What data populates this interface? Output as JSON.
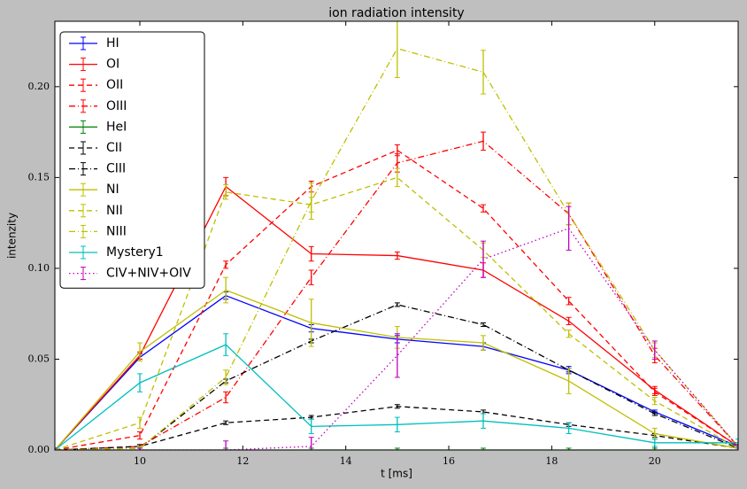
{
  "chart_data": {
    "type": "line",
    "title": "ion radiation intensity",
    "x_label": "t [ms]",
    "y_label": "intenzity",
    "x": [
      8.35,
      10,
      11.67,
      13.33,
      15,
      16.67,
      18.33,
      20,
      21.62
    ],
    "xlim": [
      8.35,
      21.62
    ],
    "xticks": [
      10,
      12,
      14,
      16,
      18,
      20
    ],
    "ylim": [
      0,
      0.236
    ],
    "yticks": [
      {
        "value": 0,
        "label": "0.00"
      },
      {
        "value": 0.05,
        "label": "0.05"
      },
      {
        "value": 0.1,
        "label": "0.10"
      },
      {
        "value": 0.15,
        "label": "0.15"
      },
      {
        "value": 0.2,
        "label": "0.20"
      }
    ],
    "legend": "upper left",
    "grid": false,
    "series": [
      {
        "name": "HI",
        "color": "#0000ff",
        "linestyle": "solid",
        "values": [
          0,
          0.051,
          0.085,
          0.067,
          0.061,
          0.057,
          0.044,
          0.021,
          0.002
        ],
        "errors": [
          0.001,
          0.002,
          0.002,
          0.002,
          0.002,
          0.002,
          0.002,
          0.001,
          0.001
        ]
      },
      {
        "name": "OI",
        "color": "#ff0000",
        "linestyle": "solid",
        "values": [
          0,
          0.052,
          0.145,
          0.108,
          0.107,
          0.099,
          0.071,
          0.033,
          0.002
        ],
        "errors": [
          0.001,
          0.002,
          0.005,
          0.004,
          0.002,
          0.004,
          0.002,
          0.002,
          0.001
        ]
      },
      {
        "name": "OII",
        "color": "#ff0000",
        "linestyle": "dashed",
        "values": [
          0,
          0.008,
          0.102,
          0.145,
          0.165,
          0.133,
          0.082,
          0.032,
          0.002
        ],
        "errors": [
          0.001,
          0.002,
          0.002,
          0.003,
          0.003,
          0.002,
          0.002,
          0.002,
          0.001
        ]
      },
      {
        "name": "OIII",
        "color": "#ff0000",
        "linestyle": "dashdot",
        "values": [
          0,
          0.002,
          0.029,
          0.095,
          0.158,
          0.17,
          0.13,
          0.052,
          0.002
        ],
        "errors": [
          0.001,
          0.001,
          0.003,
          0.004,
          0.005,
          0.005,
          0.006,
          0.004,
          0.001
        ]
      },
      {
        "name": "HeI",
        "color": "#008000",
        "linestyle": "solid",
        "values": [
          0,
          0,
          0,
          0,
          0,
          0,
          0,
          0,
          0
        ],
        "errors": [
          0.001,
          0.001,
          0.001,
          0.001,
          0.001,
          0.001,
          0.001,
          0.001,
          0.001
        ]
      },
      {
        "name": "CII",
        "color": "#000000",
        "linestyle": "dashed",
        "values": [
          0,
          0.002,
          0.015,
          0.018,
          0.024,
          0.021,
          0.014,
          0.008,
          0.001
        ],
        "errors": [
          0.001,
          0.001,
          0.001,
          0.001,
          0.001,
          0.001,
          0.001,
          0.001,
          0.001
        ]
      },
      {
        "name": "CIII",
        "color": "#000000",
        "linestyle": "dashdot",
        "values": [
          0,
          0.001,
          0.038,
          0.06,
          0.08,
          0.069,
          0.044,
          0.02,
          0.001
        ],
        "errors": [
          0.001,
          0.001,
          0.001,
          0.001,
          0.001,
          0.001,
          0.001,
          0.001,
          0.001
        ]
      },
      {
        "name": "NI",
        "color": "#bfbf00",
        "linestyle": "solid",
        "values": [
          0,
          0.054,
          0.088,
          0.07,
          0.062,
          0.059,
          0.038,
          0.009,
          0.001
        ],
        "errors": [
          0.001,
          0.005,
          0.007,
          0.013,
          0.006,
          0.004,
          0.007,
          0.003,
          0.001
        ]
      },
      {
        "name": "NII",
        "color": "#bfbf00",
        "linestyle": "dashed",
        "values": [
          0,
          0.015,
          0.142,
          0.135,
          0.15,
          0.11,
          0.064,
          0.027,
          0.001
        ],
        "errors": [
          0.001,
          0.003,
          0.004,
          0.004,
          0.005,
          0.004,
          0.002,
          0.002,
          0.001
        ]
      },
      {
        "name": "NIII",
        "color": "#bfbf00",
        "linestyle": "dashdot",
        "values": [
          0,
          0.001,
          0.04,
          0.137,
          0.221,
          0.208,
          0.13,
          0.055,
          0.002
        ],
        "errors": [
          0.001,
          0.001,
          0.004,
          0.01,
          0.016,
          0.012,
          0.006,
          0.004,
          0.001
        ]
      },
      {
        "name": "Mystery1",
        "color": "#00bfbf",
        "linestyle": "solid",
        "values": [
          0,
          0.037,
          0.058,
          0.013,
          0.014,
          0.016,
          0.012,
          0.004,
          0.004
        ],
        "errors": [
          0.001,
          0.005,
          0.006,
          0.004,
          0.004,
          0.004,
          0.003,
          0.002,
          0.002
        ]
      },
      {
        "name": "CIV+NIV+OIV",
        "color": "#bf00bf",
        "linestyle": "dotted",
        "values": [
          0,
          0,
          0,
          0.002,
          0.052,
          0.105,
          0.122,
          0.055,
          0.002
        ],
        "errors": [
          0.001,
          0.001,
          0.005,
          0.005,
          0.012,
          0.01,
          0.012,
          0.005,
          0.001
        ]
      }
    ]
  }
}
